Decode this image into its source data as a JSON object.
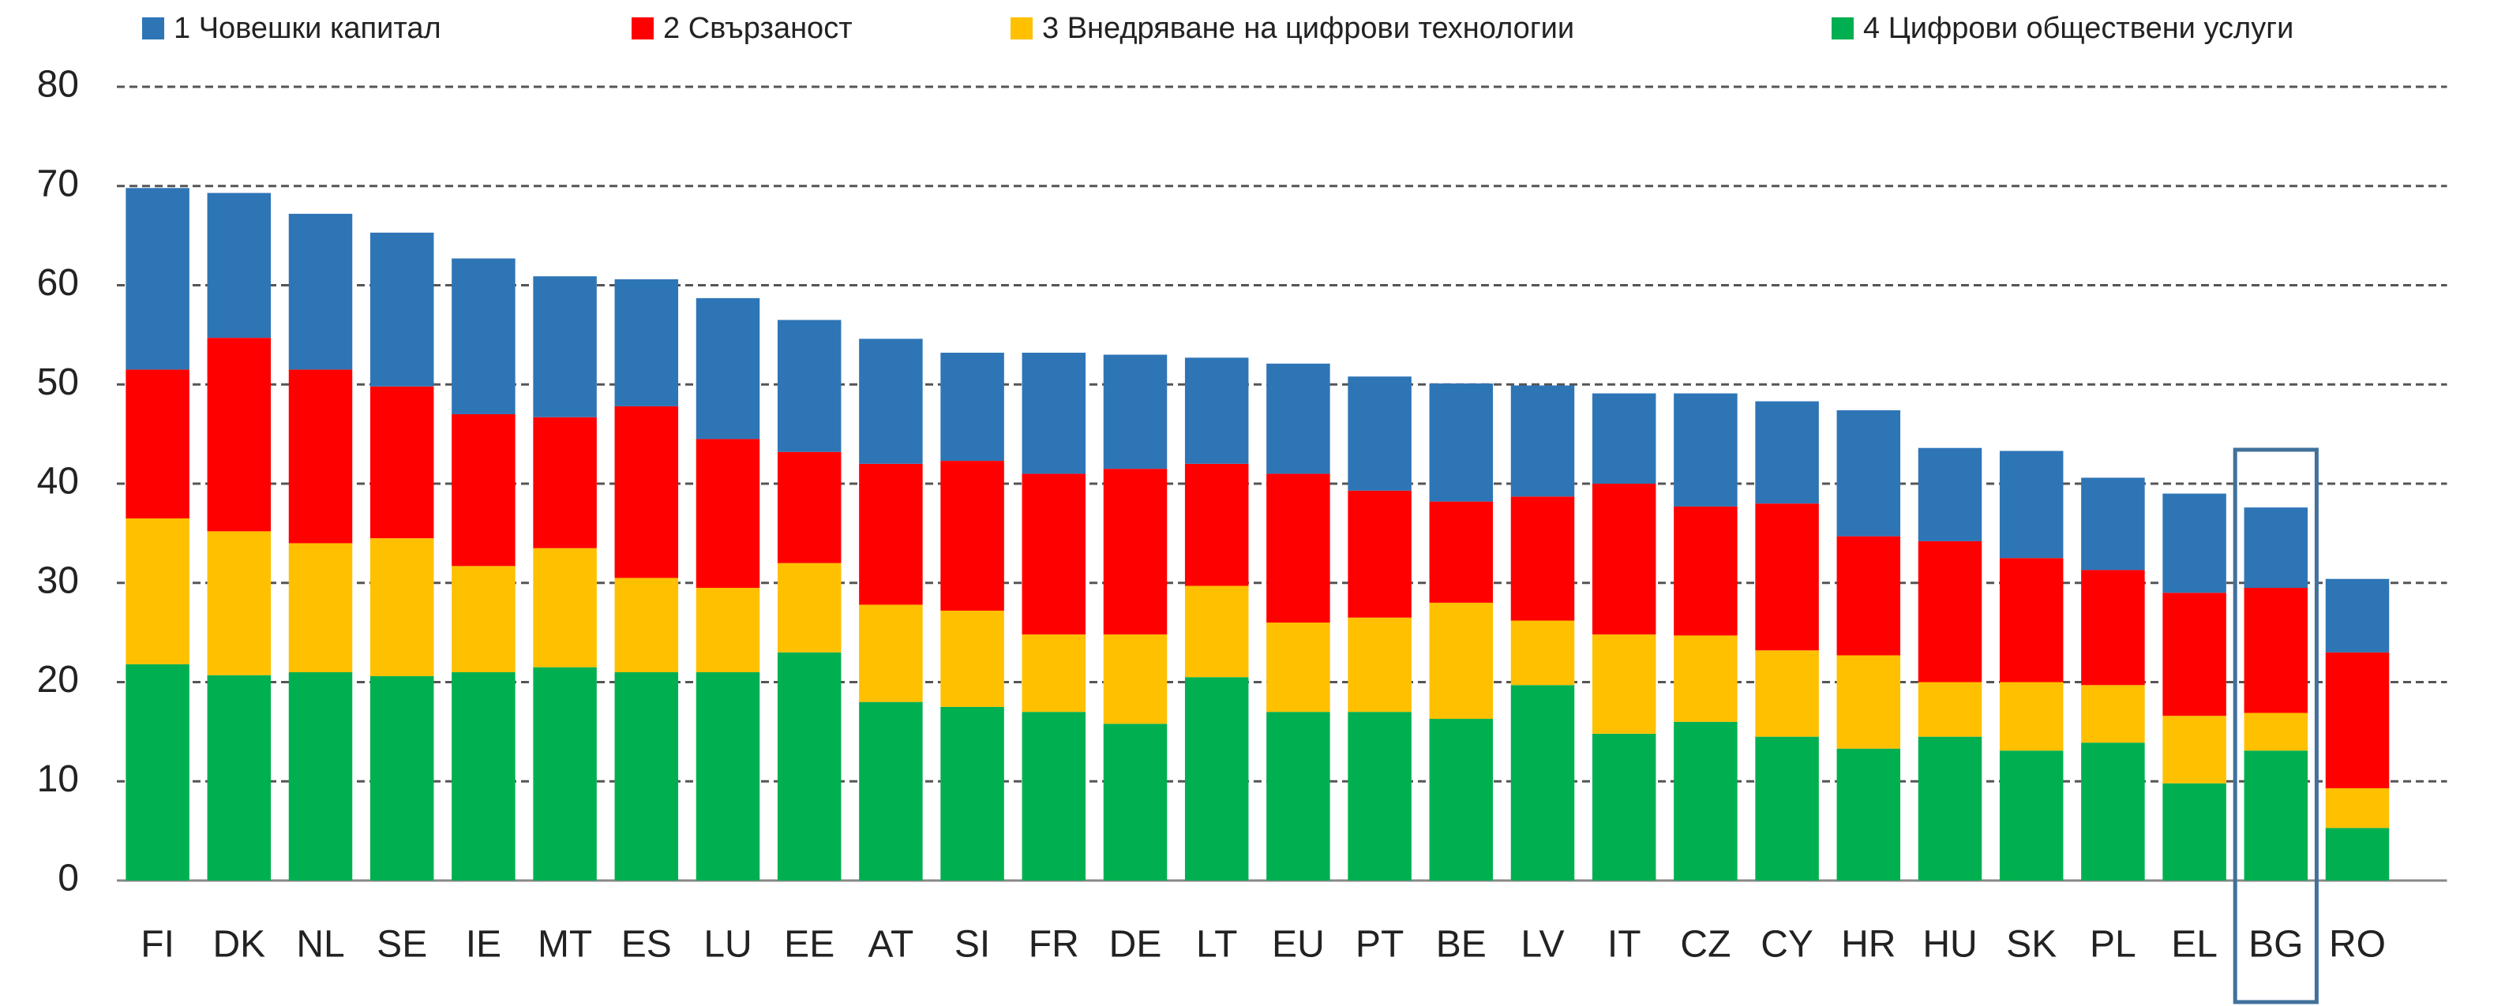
{
  "chart_data": {
    "type": "bar",
    "stacked": true,
    "categories": [
      "FI",
      "DK",
      "NL",
      "SE",
      "IE",
      "MT",
      "ES",
      "LU",
      "EE",
      "AT",
      "SI",
      "FR",
      "DE",
      "LT",
      "EU",
      "PT",
      "BE",
      "LV",
      "IT",
      "CZ",
      "CY",
      "HR",
      "HU",
      "SK",
      "PL",
      "EL",
      "BG",
      "RO"
    ],
    "series": [
      {
        "name": "1 Човешки капитал",
        "color": "#2e75b6",
        "values": [
          18.3,
          14.6,
          15.7,
          15.5,
          15.7,
          14.2,
          12.8,
          14.2,
          13.3,
          12.6,
          10.9,
          12.2,
          11.5,
          10.7,
          11.1,
          11.5,
          11.9,
          11.2,
          9.1,
          11.4,
          10.3,
          12.7,
          9.4,
          10.8,
          9.3,
          10.0,
          8.1,
          7.4
        ]
      },
      {
        "name": "2 Свързаност",
        "color": "#ff0000",
        "values": [
          15.0,
          19.5,
          17.5,
          15.3,
          15.3,
          13.2,
          17.3,
          15.0,
          11.2,
          14.2,
          15.1,
          16.2,
          16.7,
          12.3,
          15.0,
          12.8,
          10.2,
          12.5,
          15.2,
          13.0,
          14.8,
          12.0,
          14.2,
          12.5,
          11.6,
          12.4,
          12.6,
          13.7
        ]
      },
      {
        "name": "3 Внедряване на цифрови технологии",
        "color": "#ffc000",
        "values": [
          14.7,
          14.5,
          13.0,
          13.9,
          10.7,
          12.0,
          9.5,
          8.5,
          9.0,
          9.8,
          9.7,
          7.8,
          9.0,
          9.2,
          9.0,
          9.5,
          11.7,
          6.5,
          10.0,
          8.7,
          8.7,
          9.4,
          5.5,
          6.9,
          5.8,
          6.8,
          3.8,
          4.0
        ]
      },
      {
        "name": "4 Цифрови обществени услуги",
        "color": "#00b050",
        "values": [
          21.8,
          20.7,
          21.0,
          20.6,
          21.0,
          21.5,
          21.0,
          21.0,
          23.0,
          18.0,
          17.5,
          17.0,
          15.8,
          20.5,
          17.0,
          17.0,
          16.3,
          19.7,
          14.8,
          16.0,
          14.5,
          13.3,
          14.5,
          13.1,
          13.9,
          9.8,
          13.1,
          5.3
        ]
      }
    ],
    "ylim": [
      0,
      80
    ],
    "yticks": [
      0,
      10,
      20,
      30,
      40,
      50,
      60,
      70,
      80
    ],
    "grid": true
  }
}
